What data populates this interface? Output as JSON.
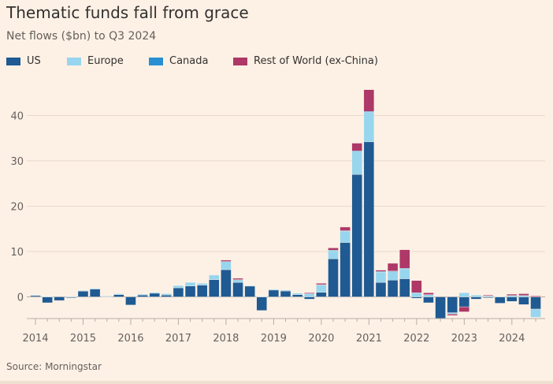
{
  "header": {
    "title": "Thematic funds fall from grace",
    "subtitle": "Net flows ($bn) to Q3 2024"
  },
  "footer": {
    "source": "Source: Morningstar"
  },
  "chart_data": {
    "type": "bar",
    "stacked": true,
    "title": "Thematic funds fall from grace",
    "subtitle": "Net flows ($bn) to Q3 2024",
    "xlabel": "",
    "ylabel": "",
    "ylim": [
      -5,
      46
    ],
    "yticks": [
      0,
      10,
      20,
      30,
      40
    ],
    "grid": true,
    "legend_position": "top-left",
    "x_tick_labels": [
      "2014",
      "2015",
      "2016",
      "2017",
      "2018",
      "2019",
      "2020",
      "2021",
      "2022",
      "2023",
      "2024"
    ],
    "categories": [
      "2014 Q1",
      "2014 Q2",
      "2014 Q3",
      "2014 Q4",
      "2015 Q1",
      "2015 Q2",
      "2015 Q3",
      "2015 Q4",
      "2016 Q1",
      "2016 Q2",
      "2016 Q3",
      "2016 Q4",
      "2017 Q1",
      "2017 Q2",
      "2017 Q3",
      "2017 Q4",
      "2018 Q1",
      "2018 Q2",
      "2018 Q3",
      "2018 Q4",
      "2019 Q1",
      "2019 Q2",
      "2019 Q3",
      "2019 Q4",
      "2020 Q1",
      "2020 Q2",
      "2020 Q3",
      "2020 Q4",
      "2021 Q1",
      "2021 Q2",
      "2021 Q3",
      "2021 Q4",
      "2022 Q1",
      "2022 Q2",
      "2022 Q3",
      "2022 Q4",
      "2023 Q1",
      "2023 Q2",
      "2023 Q3",
      "2023 Q4",
      "2024 Q1",
      "2024 Q2",
      "2024 Q3"
    ],
    "series": [
      {
        "name": "US",
        "color": "#1f5a93",
        "values": [
          0.3,
          -1.3,
          -0.8,
          -0.2,
          1.3,
          1.7,
          0.1,
          0.5,
          -1.8,
          0.4,
          0.8,
          0.4,
          2.0,
          2.4,
          2.6,
          3.8,
          6.0,
          3.2,
          2.4,
          -3.0,
          1.5,
          1.3,
          0.5,
          -0.5,
          1.0,
          8.4,
          12.0,
          27.0,
          34.2,
          3.2,
          3.7,
          4.0,
          -0.3,
          -1.3,
          -4.8,
          -3.5,
          -2.2,
          -0.5,
          -0.2,
          -1.4,
          -1.0,
          -1.7,
          -2.7
        ]
      },
      {
        "name": "Europe",
        "color": "#97d6ee",
        "values": [
          0.1,
          0.1,
          0.0,
          0.1,
          0.1,
          0.2,
          0.1,
          0.2,
          0.0,
          0.2,
          0.2,
          0.3,
          0.5,
          0.8,
          0.4,
          1.0,
          1.8,
          0.6,
          0.1,
          0.1,
          0.2,
          0.2,
          0.3,
          0.7,
          1.6,
          1.8,
          2.5,
          5.0,
          6.5,
          2.3,
          1.9,
          2.2,
          0.9,
          0.5,
          0.0,
          -0.3,
          0.9,
          0.4,
          0.2,
          0.1,
          0.3,
          0.3,
          -1.8
        ]
      },
      {
        "name": "Canada",
        "color": "#2890d2",
        "values": [
          0,
          0,
          0,
          0,
          0,
          0,
          0,
          0,
          0,
          0,
          0,
          0,
          0,
          0,
          0,
          0,
          0,
          0,
          0,
          0,
          0,
          0,
          0,
          0,
          0.1,
          0.1,
          0.1,
          0.2,
          0.2,
          0.1,
          0.1,
          0.1,
          0,
          0,
          0,
          0,
          0,
          0,
          0,
          0,
          0,
          0,
          0
        ]
      },
      {
        "name": "Rest of World (ex-China)",
        "color": "#ae3867",
        "values": [
          0,
          0,
          0,
          0,
          0,
          0,
          0,
          0,
          0,
          0,
          0,
          0,
          0,
          0,
          0,
          0,
          0.3,
          0.3,
          0,
          0,
          0,
          0,
          0,
          0.2,
          0.3,
          0.5,
          0.8,
          1.7,
          4.8,
          0.3,
          1.7,
          4.1,
          2.7,
          0.4,
          0,
          -0.3,
          -1.1,
          0,
          0.2,
          0,
          0.3,
          0.4,
          0.2
        ]
      }
    ]
  }
}
